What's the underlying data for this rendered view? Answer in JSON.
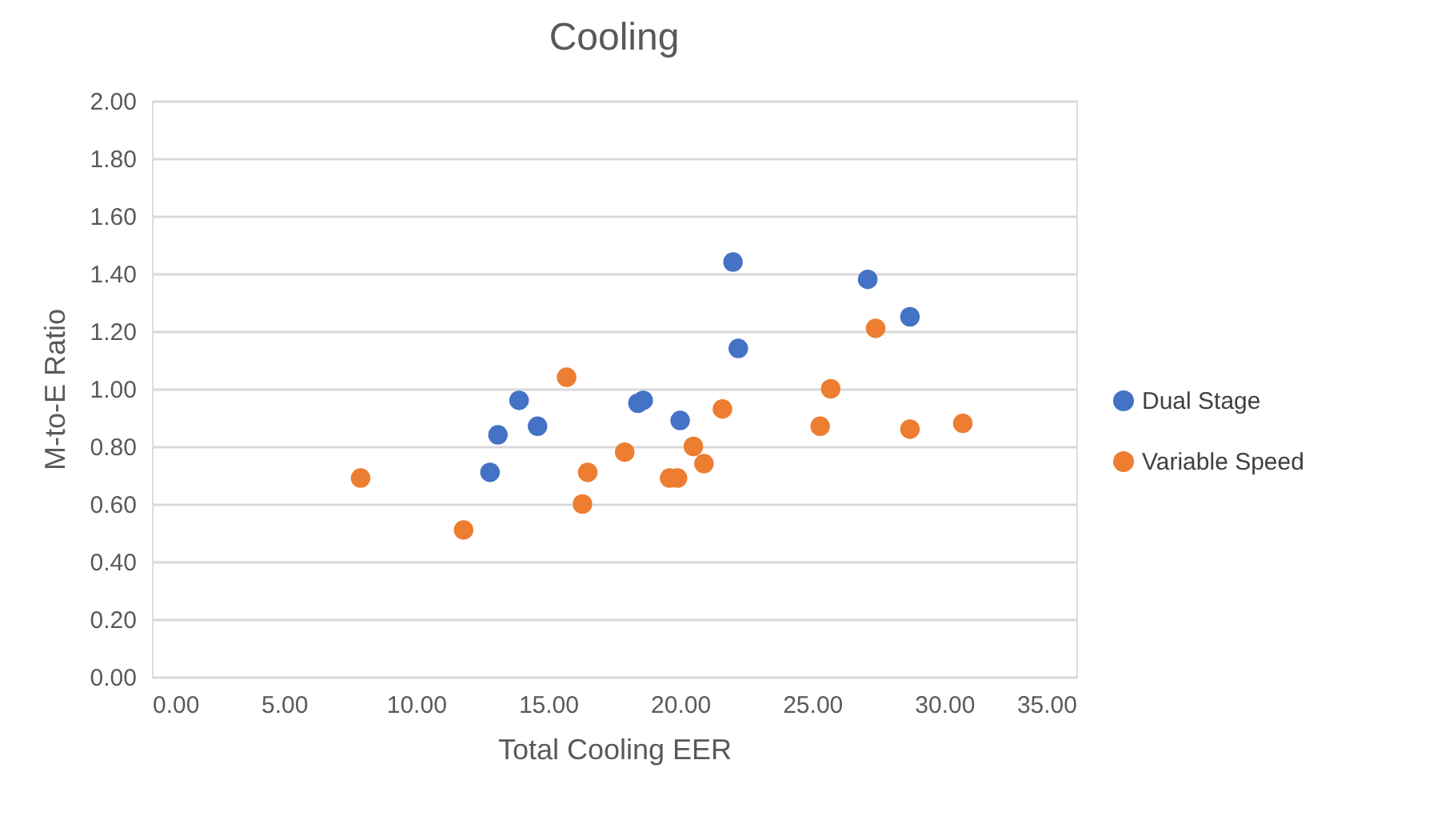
{
  "chart_data": {
    "type": "scatter",
    "title": "Cooling",
    "xlabel": "Total Cooling EER",
    "ylabel": "M-to-E Ratio",
    "xlim": [
      0,
      35
    ],
    "xticks": [
      {
        "value": 0,
        "label": "0.00"
      },
      {
        "value": 5,
        "label": "5.00"
      },
      {
        "value": 10,
        "label": "10.00"
      },
      {
        "value": 15,
        "label": "15.00"
      },
      {
        "value": 20,
        "label": "20.00"
      },
      {
        "value": 25,
        "label": "25.00"
      },
      {
        "value": 30,
        "label": "30.00"
      },
      {
        "value": 35,
        "label": "35.00"
      }
    ],
    "ylim": [
      0,
      2
    ],
    "yticks": [
      {
        "value": 0,
        "label": "0.00"
      },
      {
        "value": 0.2,
        "label": "0.20"
      },
      {
        "value": 0.4,
        "label": "0.40"
      },
      {
        "value": 0.6,
        "label": "0.60"
      },
      {
        "value": 0.8,
        "label": "0.80"
      },
      {
        "value": 1,
        "label": "1.00"
      },
      {
        "value": 1.2,
        "label": "1.20"
      },
      {
        "value": 1.4,
        "label": "1.40"
      },
      {
        "value": 1.6,
        "label": "1.60"
      },
      {
        "value": 1.8,
        "label": "1.80"
      },
      {
        "value": 2,
        "label": "2.00"
      }
    ],
    "grid": "y",
    "legend": "right",
    "marker": "circle",
    "series": [
      {
        "name": "Dual Stage",
        "color": "#4472c4",
        "x": [
          12.8,
          13.1,
          13.9,
          14.6,
          18.4,
          18.6,
          20.0,
          22.0,
          22.2,
          27.1,
          28.7
        ],
        "values": [
          0.71,
          0.84,
          0.96,
          0.87,
          0.95,
          0.96,
          0.89,
          1.44,
          1.14,
          1.38,
          1.25
        ]
      },
      {
        "name": "Variable Speed",
        "color": "#ed7d31",
        "x": [
          7.9,
          11.8,
          15.7,
          16.3,
          16.5,
          17.9,
          19.6,
          19.9,
          20.5,
          20.9,
          21.6,
          25.3,
          25.7,
          27.4,
          28.7,
          30.7
        ],
        "values": [
          0.69,
          0.51,
          1.04,
          0.6,
          0.71,
          0.78,
          0.69,
          0.69,
          0.8,
          0.74,
          0.93,
          0.87,
          1.0,
          1.21,
          0.86,
          0.88
        ]
      }
    ]
  }
}
